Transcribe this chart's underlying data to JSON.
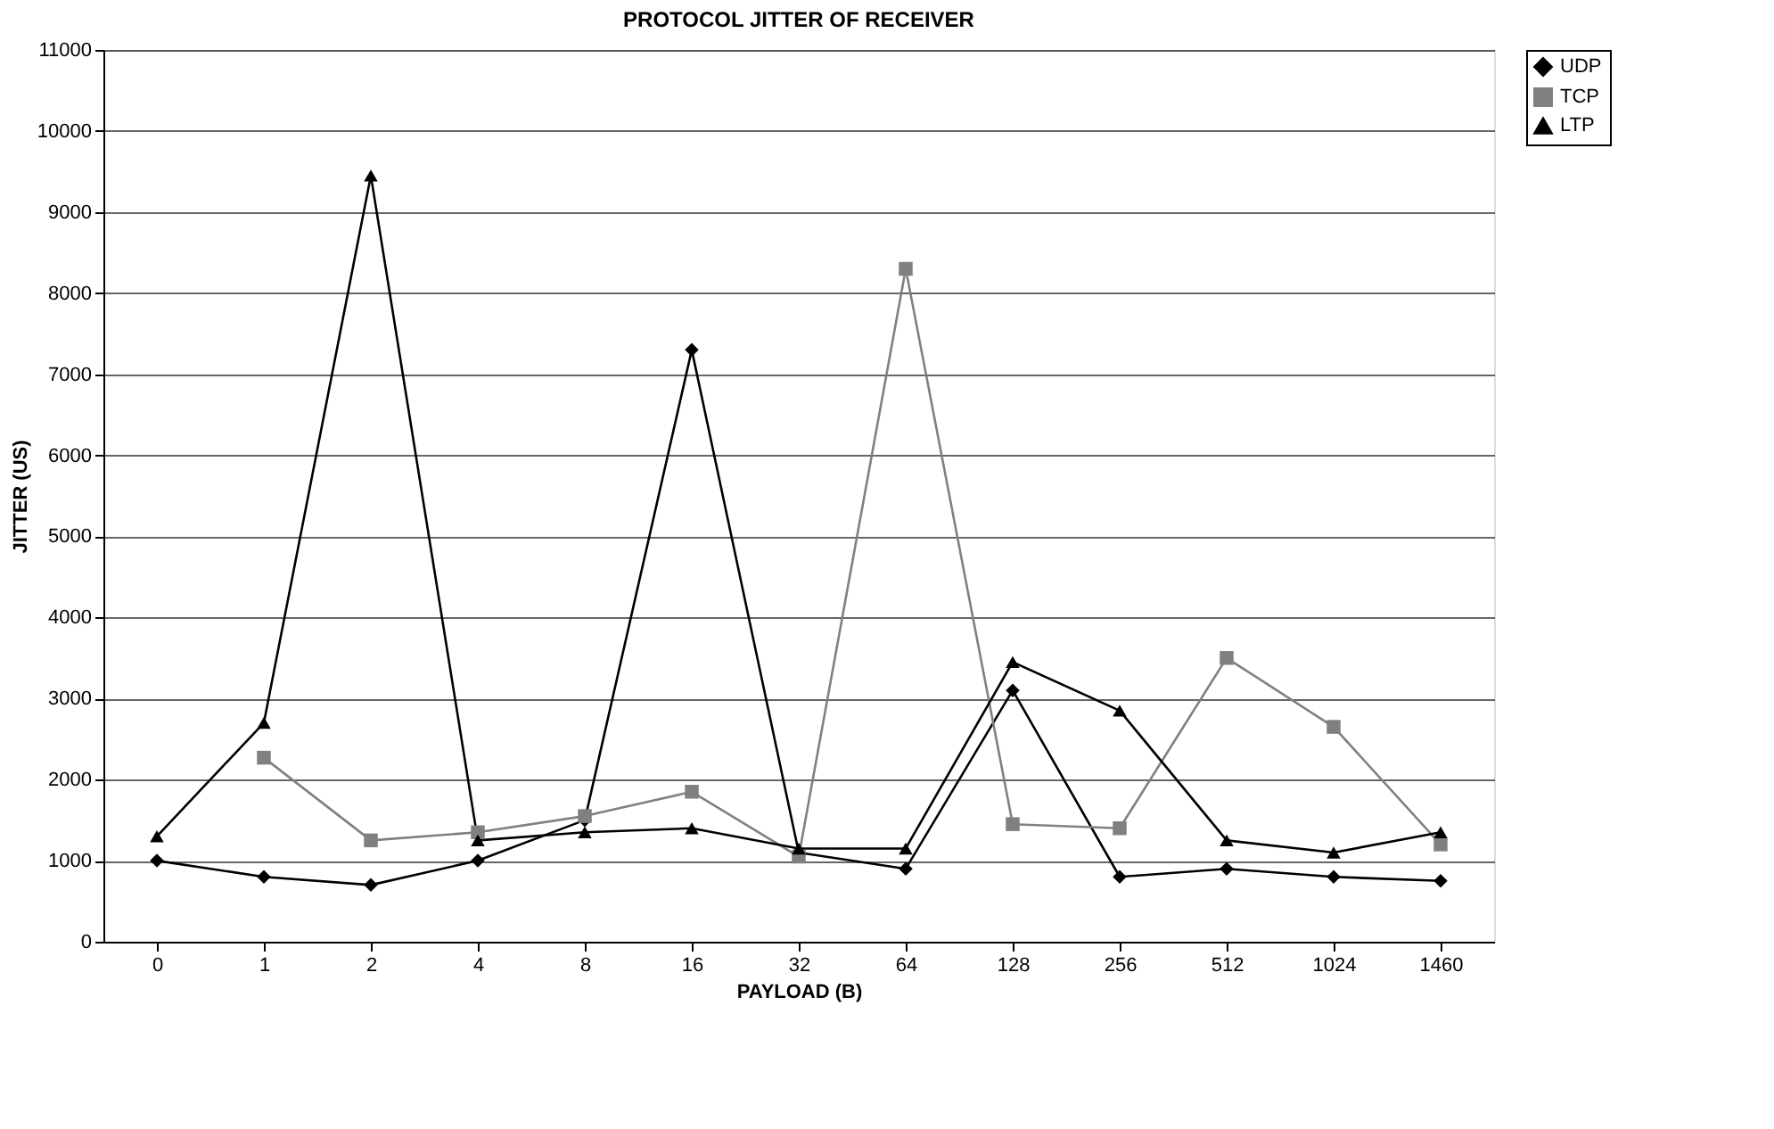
{
  "chart_data": {
    "type": "line",
    "title": "PROTOCOL JITTER OF RECEIVER",
    "xlabel": "PAYLOAD (B)",
    "ylabel": "JITTER (US)",
    "categories": [
      "0",
      "1",
      "2",
      "4",
      "8",
      "16",
      "32",
      "64",
      "128",
      "256",
      "512",
      "1024",
      "1460"
    ],
    "series": [
      {
        "name": "UDP",
        "color": "#000000",
        "marker": "diamond",
        "values": [
          1000,
          800,
          700,
          1000,
          1500,
          7300,
          1100,
          900,
          3100,
          800,
          900,
          800,
          750
        ]
      },
      {
        "name": "TCP",
        "color": "#808080",
        "marker": "square",
        "values": [
          null,
          2270,
          1250,
          1350,
          1550,
          1850,
          1050,
          8300,
          1450,
          1400,
          3500,
          2650,
          1200
        ]
      },
      {
        "name": "LTP",
        "color": "#000000",
        "marker": "triangle",
        "values": [
          1300,
          2700,
          9450,
          1250,
          1350,
          1400,
          1150,
          1150,
          3450,
          2850,
          1250,
          1100,
          1350
        ]
      }
    ],
    "ylim": [
      0,
      11000
    ],
    "yticks": [
      0,
      1000,
      2000,
      3000,
      4000,
      5000,
      6000,
      7000,
      8000,
      9000,
      10000,
      11000
    ],
    "grid": "y",
    "legend": "right",
    "line_style": "solid"
  }
}
